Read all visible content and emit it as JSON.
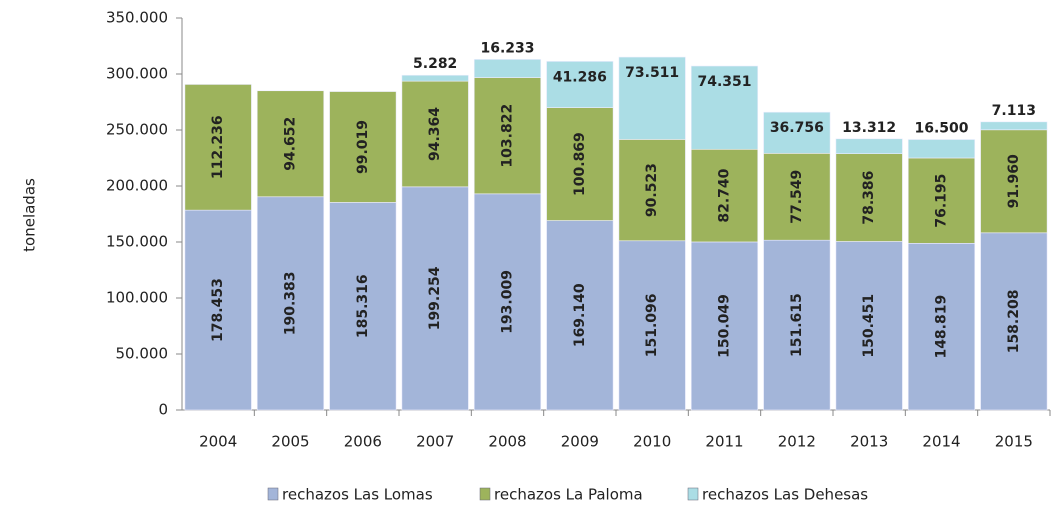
{
  "chart_data": {
    "type": "stacked-bar",
    "y_label": "toneladas",
    "categories": [
      "2004",
      "2005",
      "2006",
      "2007",
      "2008",
      "2009",
      "2010",
      "2011",
      "2012",
      "2013",
      "2014",
      "2015"
    ],
    "series": [
      {
        "name": "rechazos Las Lomas",
        "color": "#a3b5d9",
        "values": [
          178453,
          190383,
          185316,
          199254,
          193009,
          169140,
          151096,
          150049,
          151615,
          150451,
          148819,
          158208
        ],
        "value_labels": [
          "178.453",
          "190.383",
          "185.316",
          "199.254",
          "193.009",
          "169.140",
          "151.096",
          "150.049",
          "151.615",
          "150.451",
          "148.819",
          "158.208"
        ]
      },
      {
        "name": "rechazos La Paloma",
        "color": "#9db35c",
        "values": [
          112236,
          94652,
          99019,
          94364,
          103822,
          100869,
          90523,
          82740,
          77549,
          78386,
          76195,
          91960
        ],
        "value_labels": [
          "112.236",
          "94.652",
          "99.019",
          "94.364",
          "103.822",
          "100.869",
          "90.523",
          "82.740",
          "77.549",
          "78.386",
          "76.195",
          "91.960"
        ]
      },
      {
        "name": "rechazos Las Dehesas",
        "color": "#abdde5",
        "values": [
          null,
          null,
          null,
          5282,
          16233,
          41286,
          73511,
          74351,
          36756,
          13312,
          16500,
          7113
        ],
        "value_labels": [
          null,
          null,
          null,
          "5.282",
          "16.233",
          "41.286",
          "73.511",
          "74.351",
          "36.756",
          "13.312",
          "16.500",
          "7.113"
        ]
      }
    ],
    "ylim": [
      0,
      350000
    ],
    "yticks": [
      0,
      {
        "value": 50000,
        "label": "50.000"
      },
      {
        "value": 100000,
        "label": "100.000"
      },
      {
        "value": 150000,
        "label": "150.000"
      },
      {
        "value": 200000,
        "label": "200.000"
      },
      {
        "value": 250000,
        "label": "250.000"
      },
      {
        "value": 300000,
        "label": "300.000"
      },
      {
        "value": 350000,
        "label": "350.000"
      }
    ],
    "legend": "bottom"
  }
}
